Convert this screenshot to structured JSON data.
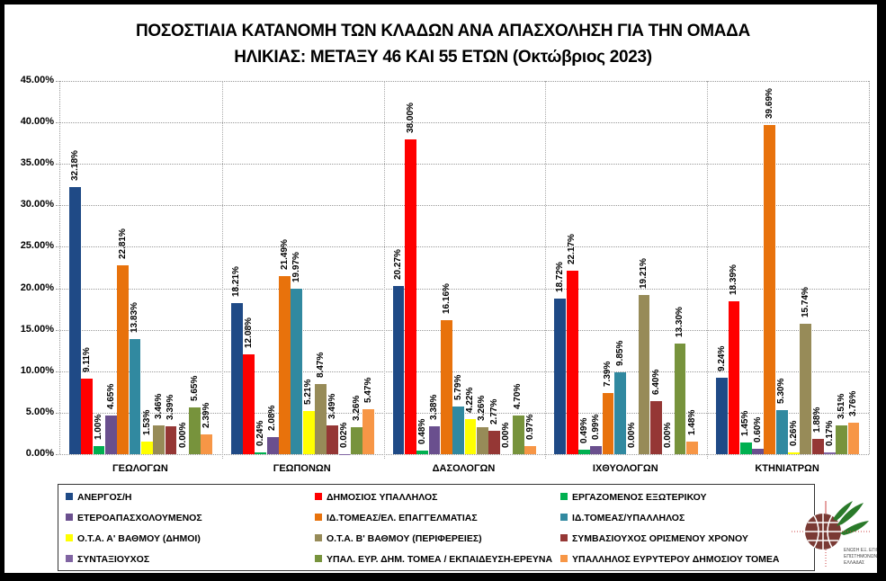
{
  "chart_data": {
    "type": "bar",
    "title": "ΠΟΣΟΣΤΙΑΙΑ ΚΑΤΑΝΟΜΗ ΤΩΝ ΚΛΑΔΩΝ ΑΝΑ ΑΠΑΣΧΟΛΗΣΗ ΓΙΑ ΤΗΝ ΟΜΑΔΑ ΗΛΙΚΙΑΣ: ΜΕΤΑΞΥ 46 ΚΑΙ 55 ΕΤΩΝ (Οκτώβριος 2023)",
    "title_lines": [
      "ΠΟΣΟΣΤΙΑΙΑ ΚΑΤΑΝΟΜΗ ΤΩΝ ΚΛΑΔΩΝ ΑΝΑ ΑΠΑΣΧΟΛΗΣΗ ΓΙΑ ΤΗΝ ΟΜΑΔΑ",
      "ΗΛΙΚΙΑΣ: ΜΕΤΑΞΥ 46 ΚΑΙ 55 ΕΤΩΝ (Οκτώβριος 2023)"
    ],
    "xlabel": "",
    "ylabel": "",
    "ylim": [
      0,
      45
    ],
    "yticks": [
      "0.00%",
      "5.00%",
      "10.00%",
      "15.00%",
      "20.00%",
      "25.00%",
      "30.00%",
      "35.00%",
      "40.00%",
      "45.00%"
    ],
    "grid": true,
    "legend_position": "bottom",
    "categories": [
      "ΓΕΩΛΟΓΩΝ",
      "ΓΕΩΠΟΝΩΝ",
      "ΔΑΣΟΛΟΓΩΝ",
      "ΙΧΘΥΟΛΟΓΩΝ",
      "ΚΤΗΝΙΑΤΡΩΝ"
    ],
    "series": [
      {
        "name": "ΑΝΕΡΓΟΣ/Η",
        "color": "#1F4A86",
        "values": [
          32.18,
          18.21,
          20.27,
          18.72,
          9.24
        ]
      },
      {
        "name": "ΔΗΜΟΣΙΟΣ ΥΠΑΛΛΗΛΟΣ",
        "color": "#FF0000",
        "values": [
          9.11,
          12.08,
          38.0,
          22.17,
          18.39
        ]
      },
      {
        "name": "ΕΡΓΑΖΟΜΕΝΟΣ ΕΞΩΤΕΡΙΚΟΥ",
        "color": "#00B050",
        "values": [
          1.0,
          0.24,
          0.48,
          0.49,
          1.45
        ]
      },
      {
        "name": "ΕΤΕΡΟΑΠΑΣΧΟΛΟΥΜΕΝΟΣ",
        "color": "#6A4F8E",
        "values": [
          4.65,
          2.08,
          3.38,
          0.99,
          0.6
        ]
      },
      {
        "name": "ΙΔ.ΤΟΜΕΑΣ/ΕΛ.  ΕΠΑΓΓΕΛΜΑΤΙΑΣ",
        "color": "#E8720C",
        "values": [
          22.81,
          21.49,
          16.16,
          7.39,
          39.69
        ]
      },
      {
        "name": "ΙΔ.ΤΟΜΕΑΣ/ΥΠΑΛΛΗΛΟΣ",
        "color": "#3189A0",
        "values": [
          13.83,
          19.97,
          5.79,
          9.85,
          5.3
        ]
      },
      {
        "name": "Ο.Τ.Α. Α' ΒΑΘΜΟΥ (ΔΗΜΟΙ)",
        "color": "#FFFF00",
        "values": [
          1.53,
          5.21,
          4.22,
          0.0,
          0.26
        ]
      },
      {
        "name": "Ο.Τ.Α. Β' ΒΑΘΜΟΥ (ΠΕΡΙΦΕΡΕΙΕΣ)",
        "color": "#978B58",
        "values": [
          3.46,
          8.47,
          3.26,
          19.21,
          15.74
        ]
      },
      {
        "name": "ΣΥΜΒΑΣΙΟΥΧΟΣ  ΟΡΙΣΜΕΝΟΥ  ΧΡΟΝΟΥ",
        "color": "#953735",
        "values": [
          3.39,
          3.49,
          2.77,
          6.4,
          1.88
        ]
      },
      {
        "name": "ΣΥΝΤΑΞΙΟΥΧΟΣ",
        "color": "#8064A2",
        "values": [
          0.0,
          0.02,
          0.0,
          0.0,
          0.17
        ]
      },
      {
        "name": "ΥΠΑΛ. ΕΥΡ. ΔΗΜ. ΤΟΜΕΑ  / ΕΚΠΑΙΔΕΥΣΗ-ΕΡΕΥΝΑ",
        "color": "#77933C",
        "values": [
          5.65,
          3.26,
          4.7,
          13.3,
          3.51
        ]
      },
      {
        "name": "ΥΠΑΛΛΗΛΟΣ ΕΥΡΥΤΕΡΟΥ ΔΗΜΟΣΙΟΥ ΤΟΜΕΑ",
        "color": "#F79646",
        "values": [
          2.39,
          5.47,
          0.97,
          1.48,
          3.76
        ]
      }
    ],
    "data_labels": [
      [
        "32.18%",
        "18.21%",
        "20.27%",
        "18.72%",
        "9.24%"
      ],
      [
        "9.11%",
        "12.08%",
        "38.00%",
        "22.17%",
        "18.39%"
      ],
      [
        "1.00%",
        "0.24%",
        "0.48%",
        "0.49%",
        "1.45%"
      ],
      [
        "4.65%",
        "2.08%",
        "3.38%",
        "0.99%",
        "0.60%"
      ],
      [
        "22.81%",
        "21.49%",
        "16.16%",
        "7.39%",
        "39.69%"
      ],
      [
        "13.83%",
        "19.97%",
        "5.79%",
        "9.85%",
        "5.30%"
      ],
      [
        "1.53%",
        "5.21%",
        "4.22%",
        "0.00%",
        "0.26%"
      ],
      [
        "3.46%",
        "8.47%",
        "3.26%",
        "19.21%",
        "15.74%"
      ],
      [
        "3.39%",
        "3.49%",
        "2.77%",
        "6.40%",
        "1.88%"
      ],
      [
        "0.00%",
        "0.02%",
        "0.00%",
        "0.00%",
        "0.17%"
      ],
      [
        "5.65%",
        "3.26%",
        "4.70%",
        "13.30%",
        "3.51%"
      ],
      [
        "2.39%",
        "5.47%",
        "0.97%",
        "1.48%",
        "3.76%"
      ]
    ]
  },
  "logo": {
    "name": "organization-logo-globe-olive-branch"
  }
}
